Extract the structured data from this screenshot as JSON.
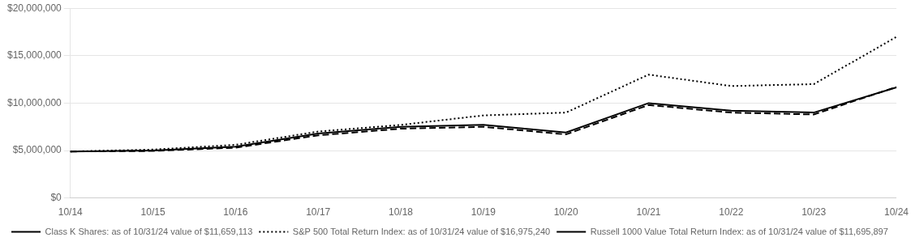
{
  "chart_data": {
    "type": "line",
    "categories": [
      "10/14",
      "10/15",
      "10/16",
      "10/17",
      "10/18",
      "10/19",
      "10/20",
      "10/21",
      "10/22",
      "10/23",
      "10/24"
    ],
    "series": [
      {
        "name": "Class K Shares: as of 10/31/24 value of $11,659,113",
        "color": "#000000",
        "line_style": "solid",
        "values": [
          4900000,
          5000000,
          5400000,
          6800000,
          7500000,
          7700000,
          6900000,
          10000000,
          9200000,
          9000000,
          11659113
        ]
      },
      {
        "name": "S&P 500 Total Return Index: as of 10/31/24 value of $16,975,240",
        "color": "#000000",
        "line_style": "dotted",
        "values": [
          4900000,
          5100000,
          5600000,
          7000000,
          7700000,
          8700000,
          9000000,
          13000000,
          11800000,
          12000000,
          16975240
        ]
      },
      {
        "name": "Russell 1000 Value Total Return Index: as of 10/31/24 value of $11,695,897",
        "color": "#000000",
        "line_style": "dashed",
        "values": [
          4900000,
          4950000,
          5300000,
          6600000,
          7300000,
          7500000,
          6700000,
          9800000,
          9000000,
          8800000,
          11695897
        ]
      }
    ],
    "ylim": [
      0,
      20000000
    ],
    "yticks": [
      {
        "value": 0,
        "label": "$0"
      },
      {
        "value": 5000000,
        "label": "$5,000,000"
      },
      {
        "value": 10000000,
        "label": "$10,000,000"
      },
      {
        "value": 15000000,
        "label": "$15,000,000"
      },
      {
        "value": 20000000,
        "label": "$20,000,000"
      }
    ],
    "grid": "y",
    "legend": "bottom"
  }
}
